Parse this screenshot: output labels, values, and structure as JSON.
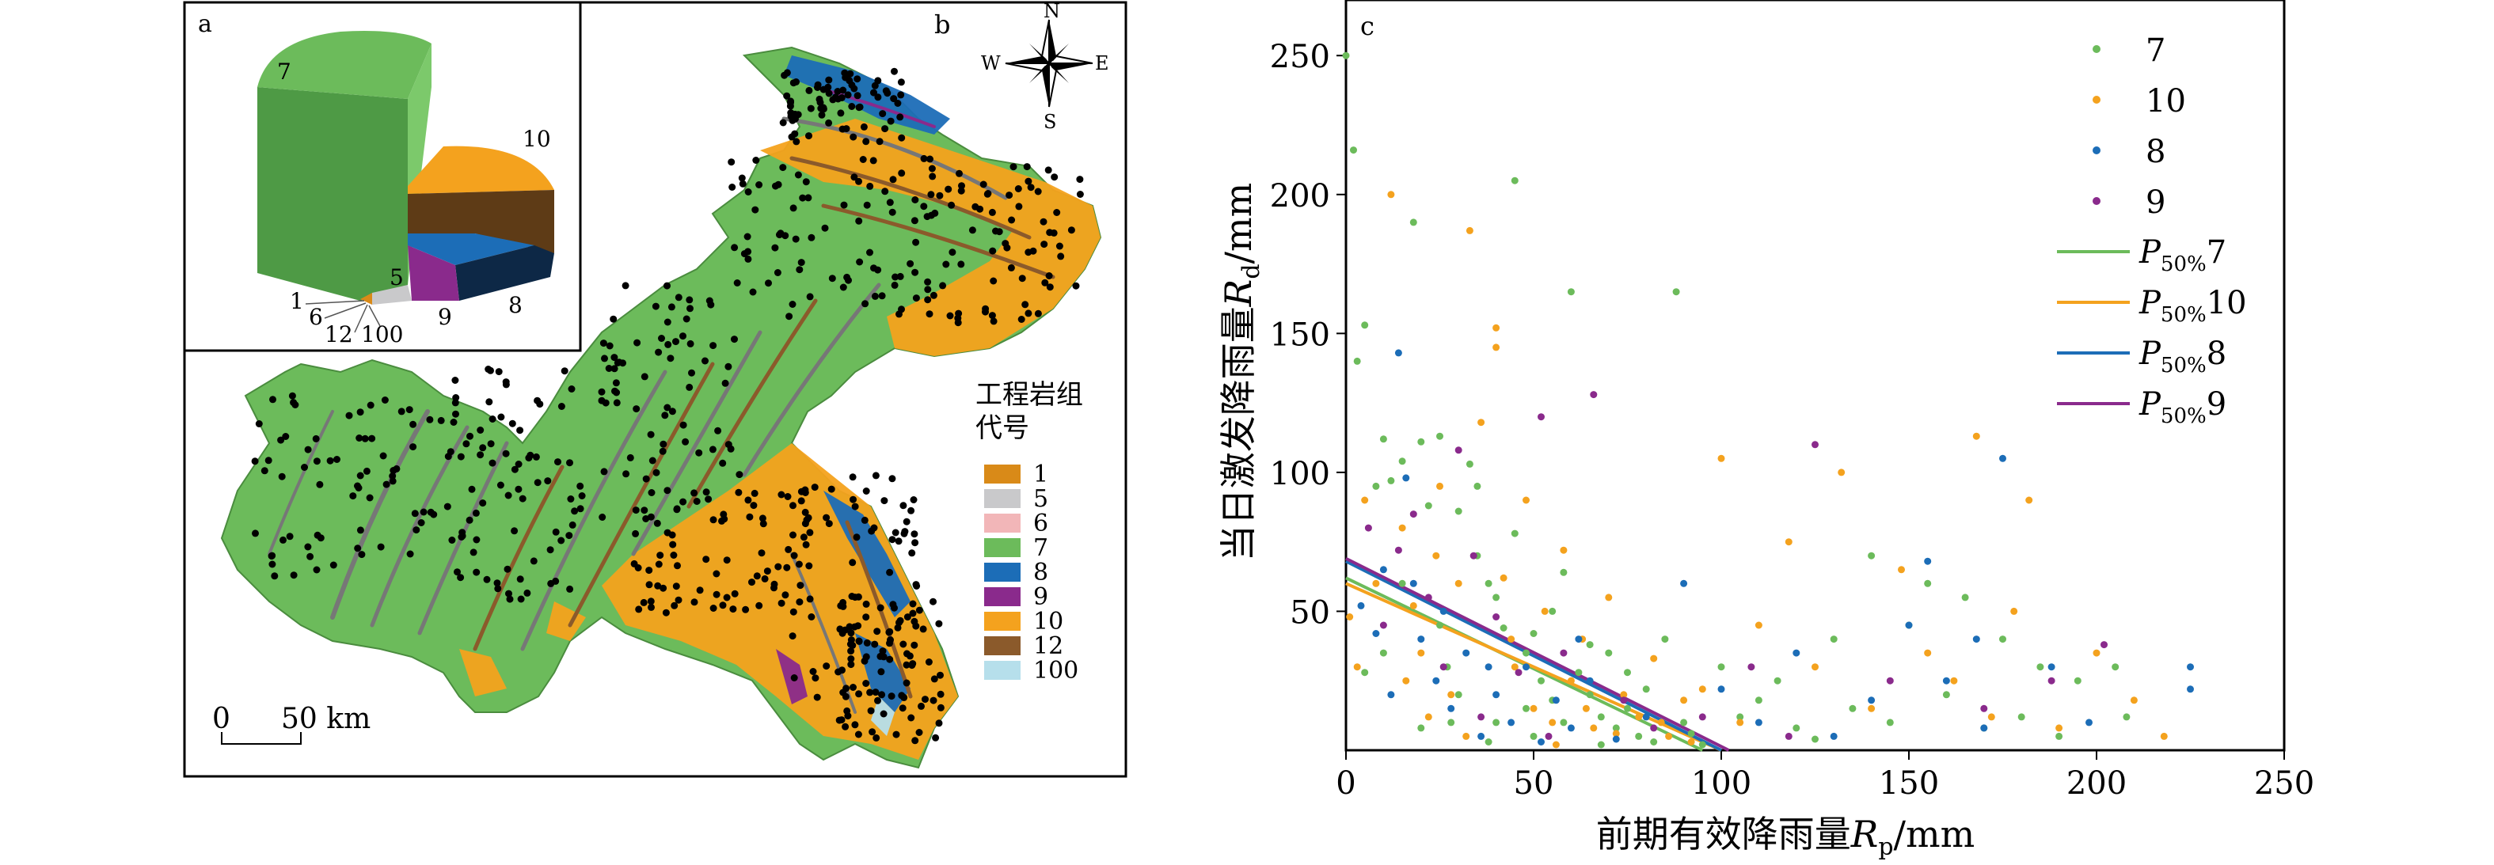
{
  "panel_a": {
    "label": "a",
    "slice_labels": [
      "7",
      "10",
      "8",
      "9",
      "5",
      "1",
      "6",
      "12",
      "100"
    ]
  },
  "panel_b": {
    "label": "b",
    "compass": {
      "n": "N",
      "s": "S",
      "e": "E",
      "w": "W"
    },
    "legend_title_line1": "工程岩组",
    "legend_title_line2": "代号",
    "legend": [
      {
        "code": "1",
        "color": "#d98a18"
      },
      {
        "code": "5",
        "color": "#c9c9cb"
      },
      {
        "code": "6",
        "color": "#f2b6b8"
      },
      {
        "code": "7",
        "color": "#6cbb5b"
      },
      {
        "code": "8",
        "color": "#1c6db7"
      },
      {
        "code": "9",
        "color": "#8a2a8c"
      },
      {
        "code": "10",
        "color": "#f4a21e"
      },
      {
        "code": "12",
        "color": "#8b5a2b"
      },
      {
        "code": "100",
        "color": "#b6dfeb"
      }
    ],
    "scale_zero": "0",
    "scale_label": "50 km"
  },
  "panel_c": {
    "label": "c",
    "chart_data": {
      "type": "scatter",
      "xlabel_prefix": "前期有效降雨量",
      "xlabel_var": "R",
      "xlabel_sub": "p",
      "xlabel_suffix": "/mm",
      "ylabel_prefix": "当日激发降雨量",
      "ylabel_var": "R",
      "ylabel_sub": "d",
      "ylabel_suffix": "/mm",
      "xlim": [
        0,
        250
      ],
      "ylim": [
        0,
        270
      ],
      "xticks": [
        0,
        50,
        100,
        150,
        200,
        250
      ],
      "yticks": [
        50,
        100,
        150,
        200,
        250
      ],
      "grid": false,
      "legend_position": "top-right",
      "series": [
        {
          "name": "7",
          "color": "#6cbb5b",
          "points": [
            [
              0,
              250
            ],
            [
              2,
              216
            ],
            [
              3,
              140
            ],
            [
              5,
              153
            ],
            [
              8,
              95
            ],
            [
              10,
              112
            ],
            [
              12,
              97
            ],
            [
              15,
              104
            ],
            [
              18,
              190
            ],
            [
              20,
              111
            ],
            [
              22,
              88
            ],
            [
              25,
              113
            ],
            [
              27,
              30
            ],
            [
              30,
              86
            ],
            [
              33,
              103
            ],
            [
              35,
              70
            ],
            [
              38,
              60
            ],
            [
              40,
              55
            ],
            [
              42,
              44
            ],
            [
              45,
              205
            ],
            [
              48,
              35
            ],
            [
              50,
              42
            ],
            [
              52,
              25
            ],
            [
              55,
              18
            ],
            [
              58,
              64
            ],
            [
              60,
              165
            ],
            [
              62,
              28
            ],
            [
              65,
              20
            ],
            [
              68,
              12
            ],
            [
              70,
              35
            ],
            [
              72,
              8
            ],
            [
              75,
              15
            ],
            [
              78,
              5
            ],
            [
              80,
              22
            ],
            [
              82,
              3
            ],
            [
              85,
              40
            ],
            [
              88,
              165
            ],
            [
              90,
              10
            ],
            [
              92,
              6
            ],
            [
              95,
              2
            ],
            [
              100,
              30
            ],
            [
              105,
              12
            ],
            [
              110,
              18
            ],
            [
              115,
              25
            ],
            [
              120,
              8
            ],
            [
              125,
              4
            ],
            [
              130,
              40
            ],
            [
              135,
              15
            ],
            [
              140,
              70
            ],
            [
              145,
              10
            ],
            [
              150,
              45
            ],
            [
              155,
              60
            ],
            [
              160,
              20
            ],
            [
              165,
              55
            ],
            [
              170,
              8
            ],
            [
              175,
              40
            ],
            [
              180,
              12
            ],
            [
              185,
              30
            ],
            [
              190,
              5
            ],
            [
              195,
              25
            ],
            [
              205,
              30
            ],
            [
              208,
              12
            ],
            [
              15,
              60
            ],
            [
              25,
              45
            ],
            [
              35,
              95
            ],
            [
              45,
              78
            ],
            [
              55,
              50
            ],
            [
              65,
              38
            ],
            [
              75,
              28
            ],
            [
              30,
              20
            ],
            [
              40,
              10
            ],
            [
              50,
              5
            ],
            [
              20,
              8
            ],
            [
              10,
              35
            ],
            [
              5,
              28
            ],
            [
              28,
              10
            ],
            [
              38,
              3
            ],
            [
              58,
              10
            ],
            [
              68,
              2
            ],
            [
              48,
              15
            ]
          ]
        },
        {
          "name": "10",
          "color": "#f4a21e",
          "points": [
            [
              1,
              48
            ],
            [
              3,
              30
            ],
            [
              5,
              90
            ],
            [
              8,
              60
            ],
            [
              12,
              200
            ],
            [
              15,
              80
            ],
            [
              18,
              52
            ],
            [
              20,
              35
            ],
            [
              25,
              95
            ],
            [
              28,
              20
            ],
            [
              30,
              60
            ],
            [
              33,
              187
            ],
            [
              36,
              118
            ],
            [
              40,
              145
            ],
            [
              42,
              62
            ],
            [
              45,
              30
            ],
            [
              48,
              90
            ],
            [
              50,
              15
            ],
            [
              53,
              50
            ],
            [
              55,
              10
            ],
            [
              58,
              72
            ],
            [
              60,
              25
            ],
            [
              63,
              40
            ],
            [
              66,
              8
            ],
            [
              70,
              55
            ],
            [
              74,
              20
            ],
            [
              78,
              12
            ],
            [
              82,
              33
            ],
            [
              86,
              5
            ],
            [
              90,
              18
            ],
            [
              95,
              22
            ],
            [
              100,
              105
            ],
            [
              105,
              10
            ],
            [
              110,
              45
            ],
            [
              118,
              75
            ],
            [
              125,
              30
            ],
            [
              132,
              100
            ],
            [
              140,
              15
            ],
            [
              148,
              65
            ],
            [
              155,
              35
            ],
            [
              162,
              25
            ],
            [
              168,
              113
            ],
            [
              172,
              12
            ],
            [
              178,
              50
            ],
            [
              182,
              90
            ],
            [
              190,
              8
            ],
            [
              200,
              35
            ],
            [
              210,
              18
            ],
            [
              218,
              5
            ],
            [
              22,
              12
            ],
            [
              32,
              5
            ],
            [
              44,
              40
            ],
            [
              56,
              2
            ],
            [
              64,
              15
            ],
            [
              72,
              6
            ],
            [
              84,
              10
            ],
            [
              92,
              3
            ],
            [
              40,
              152
            ],
            [
              24,
              70
            ],
            [
              16,
              25
            ]
          ]
        },
        {
          "name": "8",
          "color": "#1c6db7",
          "points": [
            [
              4,
              52
            ],
            [
              8,
              42
            ],
            [
              10,
              65
            ],
            [
              14,
              143
            ],
            [
              16,
              98
            ],
            [
              18,
              60
            ],
            [
              20,
              40
            ],
            [
              24,
              25
            ],
            [
              28,
              15
            ],
            [
              32,
              35
            ],
            [
              36,
              5
            ],
            [
              40,
              20
            ],
            [
              44,
              10
            ],
            [
              48,
              30
            ],
            [
              52,
              3
            ],
            [
              56,
              18
            ],
            [
              60,
              8
            ],
            [
              65,
              25
            ],
            [
              72,
              4
            ],
            [
              80,
              12
            ],
            [
              90,
              60
            ],
            [
              100,
              22
            ],
            [
              110,
              10
            ],
            [
              120,
              35
            ],
            [
              130,
              5
            ],
            [
              140,
              18
            ],
            [
              150,
              45
            ],
            [
              160,
              25
            ],
            [
              170,
              8
            ],
            [
              175,
              105
            ],
            [
              188,
              30
            ],
            [
              198,
              10
            ],
            [
              225,
              30
            ],
            [
              225,
              22
            ],
            [
              155,
              68
            ],
            [
              168,
              40
            ],
            [
              12,
              20
            ],
            [
              26,
              50
            ],
            [
              38,
              30
            ],
            [
              62,
              40
            ]
          ]
        },
        {
          "name": "9",
          "color": "#8a2a8c",
          "points": [
            [
              6,
              80
            ],
            [
              10,
              45
            ],
            [
              14,
              72
            ],
            [
              18,
              85
            ],
            [
              22,
              55
            ],
            [
              30,
              108
            ],
            [
              34,
              70
            ],
            [
              40,
              48
            ],
            [
              46,
              28
            ],
            [
              52,
              120
            ],
            [
              58,
              35
            ],
            [
              66,
              128
            ],
            [
              74,
              18
            ],
            [
              82,
              8
            ],
            [
              95,
              12
            ],
            [
              108,
              30
            ],
            [
              118,
              5
            ],
            [
              125,
              110
            ],
            [
              145,
              25
            ],
            [
              170,
              15
            ],
            [
              188,
              25
            ],
            [
              202,
              38
            ],
            [
              36,
              12
            ],
            [
              26,
              30
            ],
            [
              54,
              5
            ]
          ]
        }
      ],
      "lines": [
        {
          "name": "P50%7",
          "label_main": "P",
          "label_sub": "50%",
          "label_tail": "7",
          "color": "#6cbb5b",
          "x0": 0,
          "y0": 62,
          "x1": 95,
          "y1": 0
        },
        {
          "name": "P50%10",
          "label_main": "P",
          "label_sub": "50%",
          "label_tail": "10",
          "color": "#f4a21e",
          "x0": 0,
          "y0": 60,
          "x1": 100,
          "y1": 0
        },
        {
          "name": "P50%8",
          "label_main": "P",
          "label_sub": "50%",
          "label_tail": "8",
          "color": "#1c6db7",
          "x0": 0,
          "y0": 68,
          "x1": 100,
          "y1": 0
        },
        {
          "name": "P50%9",
          "label_main": "P",
          "label_sub": "50%",
          "label_tail": "9",
          "color": "#8a2a8c",
          "x0": 0,
          "y0": 69,
          "x1": 102,
          "y1": 0
        }
      ]
    }
  }
}
